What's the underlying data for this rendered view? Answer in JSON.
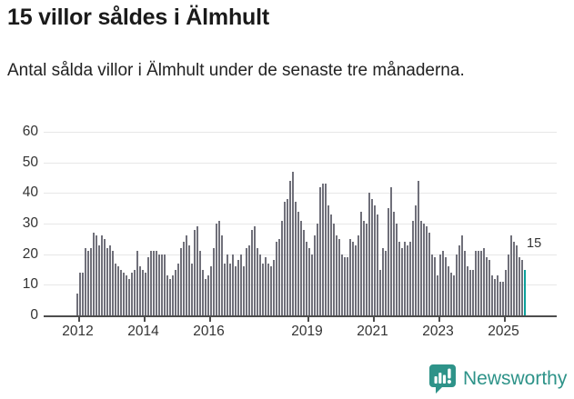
{
  "header": {
    "title": "15 villor såldes i Älmhult",
    "subtitle": "Antal sålda villor i Älmhult under de senaste tre månaderna."
  },
  "chart_data": {
    "type": "bar",
    "title": "15 villor såldes i Älmhult",
    "subtitle": "Antal sålda villor i Älmhult under de senaste tre månaderna.",
    "x_description": "Monthly bars from Jan 2012 to Sep 2025, rolling three-month totals",
    "start_year": 2012,
    "values": [
      7,
      14,
      14,
      22,
      21,
      22,
      27,
      26,
      23,
      26,
      25,
      22,
      23,
      21,
      17,
      16,
      15,
      14,
      13,
      12,
      14,
      15,
      21,
      16,
      15,
      14,
      19,
      21,
      21,
      21,
      20,
      20,
      20,
      13,
      12,
      13,
      15,
      17,
      22,
      24,
      26,
      23,
      17,
      28,
      29,
      21,
      15,
      12,
      13,
      16,
      22,
      30,
      31,
      26,
      17,
      20,
      17,
      20,
      16,
      18,
      20,
      16,
      22,
      23,
      28,
      29,
      22,
      20,
      17,
      19,
      17,
      16,
      18,
      24,
      25,
      31,
      37,
      38,
      44,
      47,
      37,
      34,
      31,
      28,
      24,
      22,
      20,
      26,
      30,
      42,
      43,
      43,
      36,
      33,
      30,
      26,
      25,
      20,
      19,
      19,
      25,
      24,
      23,
      26,
      34,
      31,
      30,
      40,
      38,
      36,
      33,
      15,
      22,
      21,
      35,
      42,
      34,
      30,
      24,
      22,
      24,
      23,
      24,
      31,
      36,
      44,
      31,
      30,
      29,
      27,
      20,
      19,
      13,
      20,
      21,
      19,
      16,
      14,
      13,
      20,
      23,
      26,
      21,
      16,
      15,
      15,
      21,
      21,
      21,
      22,
      19,
      18,
      13,
      12,
      13,
      11,
      11,
      15,
      20,
      26,
      24,
      23,
      19,
      18,
      15
    ],
    "highlight": {
      "index": 164,
      "value": 15,
      "label": "15",
      "color": "#0DA09A"
    },
    "bar_color": "#70707A",
    "ylim": [
      0,
      60
    ],
    "yticks": [
      0,
      10,
      20,
      30,
      40,
      50,
      60
    ],
    "xticks": [
      {
        "label": "2012",
        "year_index": 0
      },
      {
        "label": "2014",
        "year_index": 2
      },
      {
        "label": "2016",
        "year_index": 4
      },
      {
        "label": "2019",
        "year_index": 7
      },
      {
        "label": "2021",
        "year_index": 9
      },
      {
        "label": "2023",
        "year_index": 11
      },
      {
        "label": "2025",
        "year_index": 13
      }
    ],
    "grid": true,
    "annotation": "15"
  },
  "footer": {
    "brand": "Newsworthy",
    "brand_color": "#2E9389"
  }
}
